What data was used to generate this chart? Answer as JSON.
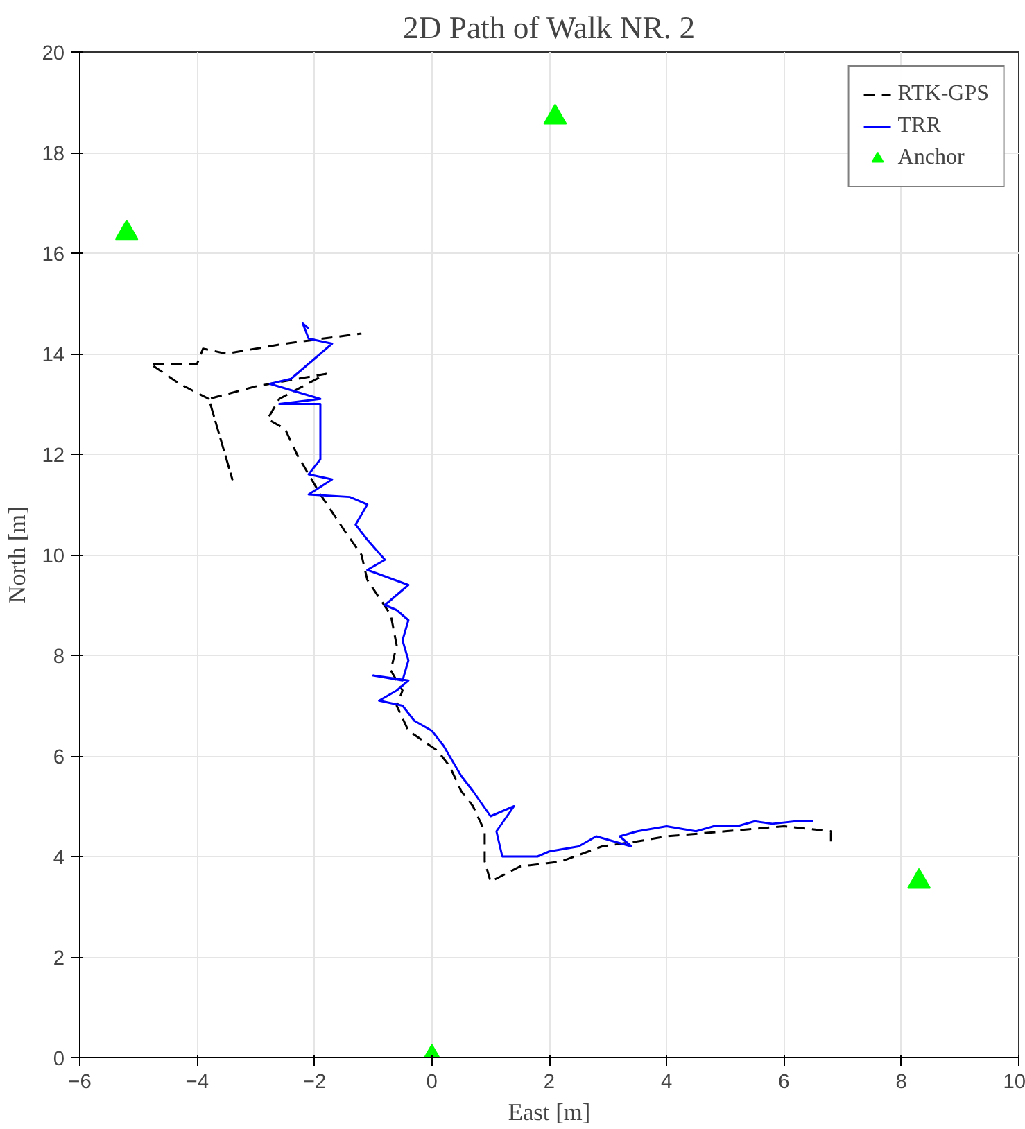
{
  "chart_data": {
    "type": "line",
    "title": "2D Path of Walk NR. 2",
    "xlabel": "East [m]",
    "ylabel": "North [m]",
    "xlim": [
      -6,
      10
    ],
    "ylim": [
      0,
      20
    ],
    "xticks": [
      -6,
      -4,
      -2,
      0,
      2,
      4,
      6,
      8,
      10
    ],
    "yticks": [
      0,
      2,
      4,
      6,
      8,
      10,
      12,
      14,
      16,
      18,
      20
    ],
    "grid": true,
    "legend": "top right",
    "series": [
      {
        "name": "RTK-GPS",
        "color": "#000000",
        "line_style": "dashed",
        "x": [
          6.8,
          6.8,
          6.0,
          5.0,
          4.0,
          3.5,
          2.9,
          2.2,
          1.5,
          1.0,
          0.9,
          0.9,
          0.7,
          0.5,
          0.3,
          0.1,
          -0.4,
          -0.6,
          -0.5,
          -0.7,
          -0.6,
          -0.7,
          -1.1,
          -1.2,
          -1.5,
          -1.9,
          -2.3,
          -2.5,
          -2.8,
          -2.6,
          -1.8,
          -3.0,
          -3.8,
          -3.6,
          -3.4,
          -3.8,
          -4.3,
          -4.8,
          -4.0,
          -3.9,
          -3.5,
          -2.5,
          -1.2
        ],
        "values": [
          4.3,
          4.5,
          4.6,
          4.5,
          4.4,
          4.3,
          4.2,
          3.9,
          3.8,
          3.5,
          3.9,
          4.5,
          5.0,
          5.3,
          5.8,
          6.1,
          6.5,
          7.0,
          7.3,
          7.7,
          8.2,
          8.8,
          9.5,
          10.0,
          10.5,
          11.2,
          12.0,
          12.5,
          12.7,
          13.1,
          13.6,
          13.35,
          13.1,
          12.3,
          11.5,
          13.1,
          13.4,
          13.8,
          13.8,
          14.1,
          14.0,
          14.2,
          14.4
        ]
      },
      {
        "name": "TRR",
        "color": "#0000ff",
        "line_style": "solid",
        "x": [
          6.5,
          6.2,
          5.8,
          5.5,
          5.2,
          4.8,
          4.5,
          4.0,
          3.5,
          3.2,
          3.4,
          2.8,
          2.5,
          2.0,
          1.8,
          1.2,
          1.1,
          1.4,
          1.0,
          0.7,
          0.5,
          0.2,
          0.0,
          -0.3,
          -0.5,
          -0.9,
          -0.6,
          -0.4,
          -1.0,
          -0.5,
          -0.4,
          -0.5,
          -0.4,
          -0.6,
          -0.8,
          -0.4,
          -1.1,
          -0.8,
          -1.1,
          -1.3,
          -1.1,
          -1.4,
          -2.1,
          -1.7,
          -2.1,
          -1.9,
          -1.9,
          -2.6,
          -1.9,
          -2.76,
          -2.4,
          -1.9,
          -1.7,
          -2.1,
          -2.2,
          -2.1
        ],
        "values": [
          4.7,
          4.7,
          4.65,
          4.7,
          4.6,
          4.6,
          4.5,
          4.6,
          4.5,
          4.4,
          4.2,
          4.4,
          4.2,
          4.1,
          4.0,
          4.0,
          4.5,
          5.0,
          4.8,
          5.3,
          5.6,
          6.2,
          6.5,
          6.7,
          7.0,
          7.1,
          7.3,
          7.5,
          7.6,
          7.5,
          7.9,
          8.3,
          8.7,
          8.9,
          9.0,
          9.4,
          9.7,
          9.9,
          10.3,
          10.6,
          11.0,
          11.15,
          11.2,
          11.5,
          11.6,
          11.9,
          13.0,
          13.0,
          13.1,
          13.4,
          13.5,
          14.0,
          14.2,
          14.3,
          14.6,
          14.5
        ]
      },
      {
        "name": "Anchor",
        "type": "scatter",
        "marker": "triangle",
        "color": "#00ff00",
        "x": [
          -5.2,
          2.1,
          8.3,
          0.0
        ],
        "values": [
          16.4,
          18.7,
          3.5,
          0.0
        ]
      }
    ]
  }
}
